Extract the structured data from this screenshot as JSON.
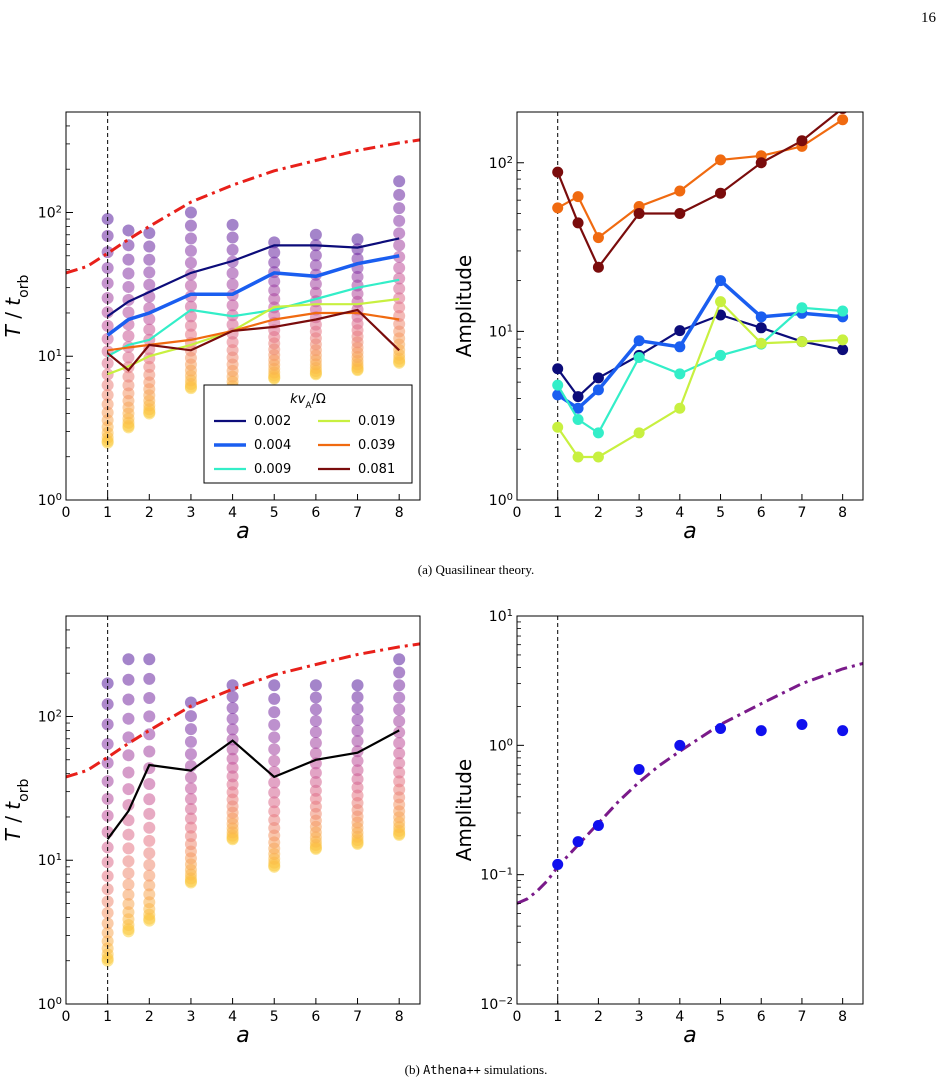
{
  "page": {
    "number": "16",
    "caption_a_prefix": "(a) Quasilinear theory.",
    "caption_b_label": "(b)",
    "caption_b_code": "Athena++",
    "caption_b_rest": "simulations."
  },
  "chart_data": [
    {
      "id": "qlt-timescale",
      "type": "line",
      "xlabel": "a",
      "ylabel": "T / t_orb",
      "xlim": [
        0,
        8.5
      ],
      "ylim": [
        1,
        500
      ],
      "yscale": "log",
      "x_ticks": [
        "0",
        "1",
        "2",
        "3",
        "4",
        "5",
        "6",
        "7",
        "8"
      ],
      "y_ticks": [
        "10^0",
        "10^1",
        "10^2"
      ],
      "vline_x": 1,
      "legend": {
        "title": "kv_A/Ω",
        "placement": "lower-right"
      },
      "series": [
        {
          "name": "0.002",
          "color": "#0c0c7a",
          "x": [
            1,
            1.5,
            2,
            3,
            4,
            5,
            6,
            7,
            8
          ],
          "y": [
            19,
            24,
            28,
            38,
            46,
            59,
            59,
            57,
            66
          ]
        },
        {
          "name": "0.004",
          "color": "#1a5ef0",
          "x": [
            1,
            1.5,
            2,
            3,
            4,
            5,
            6,
            7,
            8
          ],
          "y": [
            14,
            18,
            20,
            27,
            27,
            38,
            36,
            44,
            50
          ]
        },
        {
          "name": "0.009",
          "color": "#33eec8",
          "x": [
            1,
            1.5,
            2,
            3,
            4,
            5,
            6,
            7,
            8
          ],
          "y": [
            10,
            12,
            13,
            21,
            19,
            21,
            25,
            30,
            34
          ]
        },
        {
          "name": "0.019",
          "color": "#c8f040",
          "x": [
            1,
            1.5,
            2,
            3,
            4,
            5,
            6,
            7,
            8
          ],
          "y": [
            7.5,
            8.5,
            10,
            12,
            15,
            22,
            23,
            23,
            25
          ]
        },
        {
          "name": "0.039",
          "color": "#f06a10",
          "x": [
            1,
            1.5,
            2,
            3,
            4,
            5,
            6,
            7,
            8
          ],
          "y": [
            11,
            11.5,
            12,
            13,
            15,
            18,
            20,
            20,
            18
          ]
        },
        {
          "name": "0.081",
          "color": "#7a0c0c",
          "x": [
            1,
            1.5,
            2,
            3,
            4,
            5,
            6,
            7,
            8
          ],
          "y": [
            10.5,
            8,
            12,
            11,
            15,
            16,
            18,
            21,
            11
          ]
        }
      ],
      "reference_curve": {
        "style": "dash-dot",
        "color": "#e8201a",
        "x": [
          0,
          0.5,
          1,
          1.5,
          2,
          3,
          4,
          5,
          6,
          7,
          8,
          8.5
        ],
        "y": [
          38,
          42,
          52,
          65,
          80,
          118,
          155,
          195,
          230,
          270,
          305,
          320
        ]
      },
      "scatter": {
        "x": [
          1,
          1.5,
          2,
          3,
          4,
          5,
          6,
          7,
          8
        ],
        "y_min": [
          2.5,
          3.2,
          4,
          6,
          5.5,
          7,
          7.5,
          8,
          9
        ],
        "y_max": [
          90,
          75,
          72,
          100,
          82,
          62,
          70,
          65,
          165
        ]
      }
    },
    {
      "id": "qlt-amplitude",
      "type": "line",
      "xlabel": "a",
      "ylabel": "Amplitude",
      "xlim": [
        0,
        8.5
      ],
      "ylim": [
        1,
        200
      ],
      "yscale": "log",
      "x_ticks": [
        "0",
        "1",
        "2",
        "3",
        "4",
        "5",
        "6",
        "7",
        "8"
      ],
      "y_ticks": [
        "10^0",
        "10^1",
        "10^2"
      ],
      "vline_x": 1,
      "series": [
        {
          "name": "0.002",
          "color": "#0c0c7a",
          "x": [
            1,
            1.5,
            2,
            3,
            4,
            5,
            6,
            7,
            8
          ],
          "y": [
            6,
            4.1,
            5.3,
            7.2,
            10.1,
            12.5,
            10.5,
            8.7,
            7.8
          ]
        },
        {
          "name": "0.004",
          "color": "#1a5ef0",
          "x": [
            1,
            1.5,
            2,
            3,
            4,
            5,
            6,
            7,
            8
          ],
          "y": [
            4.2,
            3.5,
            4.5,
            8.8,
            8.1,
            20,
            12.2,
            12.8,
            12.2
          ]
        },
        {
          "name": "0.009",
          "color": "#33eec8",
          "x": [
            1,
            1.5,
            2,
            3,
            4,
            5,
            6,
            7,
            8
          ],
          "y": [
            4.8,
            3,
            2.5,
            7,
            5.6,
            7.2,
            8.4,
            13.8,
            13.2
          ]
        },
        {
          "name": "0.019",
          "color": "#c8f040",
          "x": [
            1,
            1.5,
            2,
            3,
            4,
            5,
            6,
            7,
            8
          ],
          "y": [
            2.7,
            1.8,
            1.8,
            2.5,
            3.5,
            15,
            8.5,
            8.7,
            8.9
          ]
        },
        {
          "name": "0.039",
          "color": "#f06a10",
          "x": [
            1,
            1.5,
            2,
            3,
            4,
            5,
            6,
            7,
            8
          ],
          "y": [
            54,
            63,
            36,
            55,
            68,
            104,
            110,
            125,
            180
          ]
        },
        {
          "name": "0.081",
          "color": "#7a0c0c",
          "x": [
            1,
            1.5,
            2,
            3,
            4,
            5,
            6,
            7,
            8
          ],
          "y": [
            88,
            44,
            24,
            50,
            50,
            66,
            100,
            135,
            210
          ]
        }
      ]
    },
    {
      "id": "sim-timescale",
      "type": "line",
      "xlabel": "a",
      "ylabel": "T / t_orb",
      "xlim": [
        0,
        8.5
      ],
      "ylim": [
        1,
        500
      ],
      "yscale": "log",
      "x_ticks": [
        "0",
        "1",
        "2",
        "3",
        "4",
        "5",
        "6",
        "7",
        "8"
      ],
      "y_ticks": [
        "10^0",
        "10^1",
        "10^2"
      ],
      "vline_x": 1,
      "series": [
        {
          "color": "#000000",
          "x": [
            1,
            1.5,
            2,
            3,
            4,
            5,
            6,
            7,
            8
          ],
          "y": [
            14,
            22,
            46,
            42,
            68,
            38,
            50,
            56,
            80
          ]
        }
      ],
      "reference_curve": {
        "style": "dash-dot",
        "color": "#e8201a",
        "x": [
          0,
          0.5,
          1,
          1.5,
          2,
          3,
          4,
          5,
          6,
          7,
          8,
          8.5
        ],
        "y": [
          38,
          42,
          52,
          65,
          80,
          118,
          155,
          195,
          230,
          270,
          305,
          320
        ]
      },
      "scatter": {
        "x": [
          1,
          1.5,
          2,
          3,
          4,
          5,
          6,
          7,
          8
        ],
        "y_min": [
          2,
          3.2,
          3.8,
          7,
          14,
          9,
          12,
          13,
          15
        ],
        "y_max": [
          170,
          250,
          250,
          125,
          165,
          165,
          165,
          165,
          250
        ]
      }
    },
    {
      "id": "sim-amplitude",
      "type": "scatter",
      "xlabel": "a",
      "ylabel": "Amplitude",
      "xlim": [
        0,
        8.5
      ],
      "ylim": [
        0.01,
        10
      ],
      "yscale": "log",
      "x_ticks": [
        "0",
        "1",
        "2",
        "3",
        "4",
        "5",
        "6",
        "7",
        "8"
      ],
      "y_ticks": [
        "10^-2",
        "10^-1",
        "10^0",
        "10^1"
      ],
      "vline_x": 1,
      "series": [
        {
          "color": "#1010ee",
          "x": [
            1,
            1.5,
            2,
            3,
            4,
            5,
            6,
            7,
            8
          ],
          "y": [
            0.12,
            0.18,
            0.24,
            0.65,
            1,
            1.35,
            1.3,
            1.45,
            1.3
          ]
        }
      ],
      "reference_curve": {
        "style": "dash-dot",
        "color": "#7a1a8a",
        "x": [
          0,
          0.25,
          0.5,
          0.75,
          1,
          1.5,
          2,
          2.5,
          3,
          3.5,
          4,
          5,
          6,
          7,
          8,
          8.5
        ],
        "y": [
          0.06,
          0.065,
          0.075,
          0.09,
          0.115,
          0.17,
          0.25,
          0.37,
          0.52,
          0.7,
          0.9,
          1.45,
          2.1,
          3,
          3.9,
          4.3
        ]
      }
    }
  ]
}
